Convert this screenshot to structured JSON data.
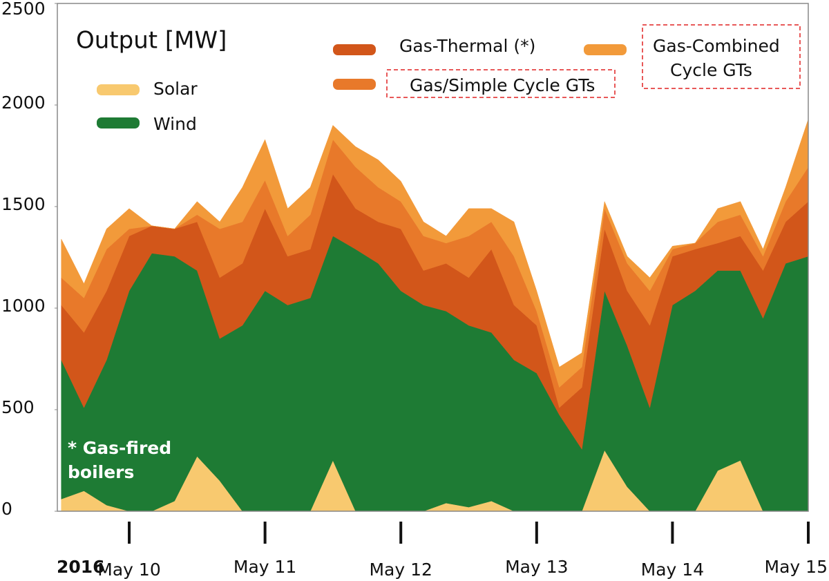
{
  "chart_data": {
    "type": "stacked_area",
    "title": "Output [MW]",
    "annotation": "* Gas-fired boilers",
    "year_label": "2016",
    "x": [
      -12,
      -8,
      -4,
      0,
      4,
      8,
      12,
      16,
      20,
      24,
      28,
      32,
      36,
      40,
      44,
      48,
      52,
      56,
      60,
      64,
      68,
      72,
      76,
      80,
      84,
      88,
      92,
      96,
      100,
      104,
      108,
      112,
      116,
      120
    ],
    "xlim": [
      -12.7,
      120
    ],
    "xticks": [
      {
        "value": 0,
        "label": "May 10"
      },
      {
        "value": 24,
        "label": "May 11"
      },
      {
        "value": 48,
        "label": "May 12"
      },
      {
        "value": 72,
        "label": "May 13"
      },
      {
        "value": 96,
        "label": "May 14"
      },
      {
        "value": 120,
        "label": "May 15"
      }
    ],
    "ylim": [
      0,
      2500
    ],
    "yticks": [
      0,
      500,
      1000,
      1500,
      2000,
      2500
    ],
    "series": [
      {
        "name": "Solar",
        "color": "#f8c96f",
        "values": [
          60,
          100,
          30,
          0,
          0,
          50,
          270,
          150,
          0,
          0,
          0,
          0,
          250,
          0,
          0,
          0,
          0,
          40,
          20,
          50,
          0,
          0,
          0,
          0,
          300,
          120,
          0,
          0,
          0,
          200,
          250,
          0,
          0,
          0
        ]
      },
      {
        "name": "Wind",
        "color": "#1e7b34",
        "values": [
          685,
          410,
          715,
          1085,
          1270,
          1205,
          915,
          700,
          915,
          1085,
          1015,
          1050,
          1105,
          1290,
          1220,
          1085,
          1015,
          945,
          895,
          830,
          745,
          680,
          475,
          305,
          785,
          695,
          510,
          1015,
          1085,
          985,
          935,
          950,
          1220,
          1255
        ]
      },
      {
        "name": "Gas-Thermal (*)",
        "color": "#d2561a",
        "values": [
          270,
          370,
          340,
          270,
          135,
          135,
          240,
          300,
          305,
          405,
          240,
          240,
          305,
          200,
          205,
          305,
          170,
          235,
          235,
          410,
          270,
          235,
          35,
          305,
          305,
          270,
          405,
          240,
          205,
          135,
          170,
          235,
          205,
          270
        ]
      },
      {
        "name": "Gas/Simple Cycle GTs",
        "color": "#e8792a",
        "values": [
          135,
          170,
          205,
          35,
          0,
          0,
          35,
          240,
          205,
          140,
          100,
          170,
          170,
          205,
          170,
          135,
          170,
          100,
          205,
          135,
          240,
          70,
          100,
          100,
          100,
          135,
          170,
          35,
          30,
          105,
          105,
          70,
          100,
          170
        ]
      },
      {
        "name": "Gas-Combined Cycle GTs",
        "color": "#f29a3a",
        "values": [
          190,
          70,
          100,
          100,
          0,
          0,
          65,
          35,
          170,
          200,
          135,
          135,
          70,
          100,
          135,
          100,
          70,
          35,
          135,
          65,
          170,
          100,
          100,
          70,
          35,
          35,
          65,
          15,
          0,
          65,
          65,
          35,
          70,
          235
        ]
      }
    ]
  }
}
